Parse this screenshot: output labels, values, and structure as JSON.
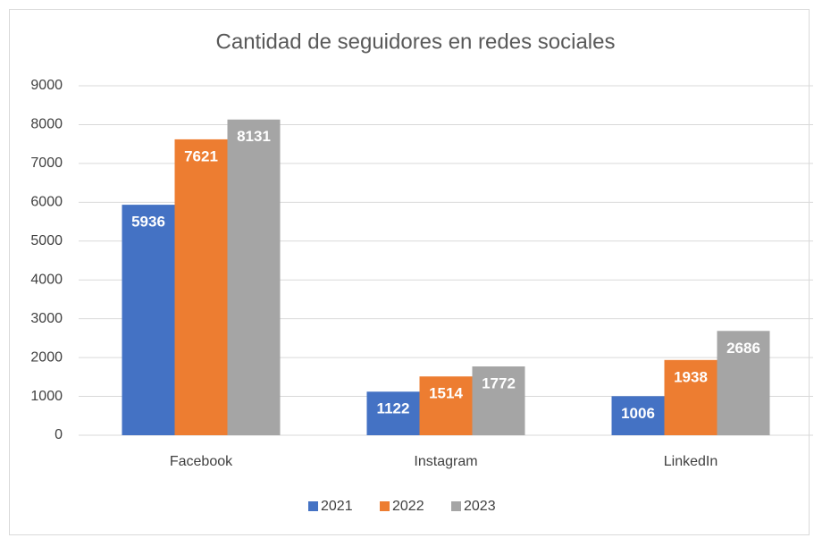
{
  "chart_data": {
    "type": "bar",
    "title": "Cantidad de seguidores en redes sociales",
    "categories": [
      "Facebook",
      "Instagram",
      "LinkedIn"
    ],
    "series": [
      {
        "name": "2021",
        "color": "#4472c4",
        "values": [
          5936,
          1122,
          1006
        ]
      },
      {
        "name": "2022",
        "color": "#ed7d31",
        "values": [
          7621,
          1514,
          1938
        ]
      },
      {
        "name": "2023",
        "color": "#a5a5a5",
        "values": [
          8131,
          1772,
          2686
        ]
      }
    ],
    "ylim": [
      0,
      9000
    ],
    "yticks": [
      0,
      1000,
      2000,
      3000,
      4000,
      5000,
      6000,
      7000,
      8000,
      9000
    ],
    "grid": true,
    "legend": "bottom"
  }
}
